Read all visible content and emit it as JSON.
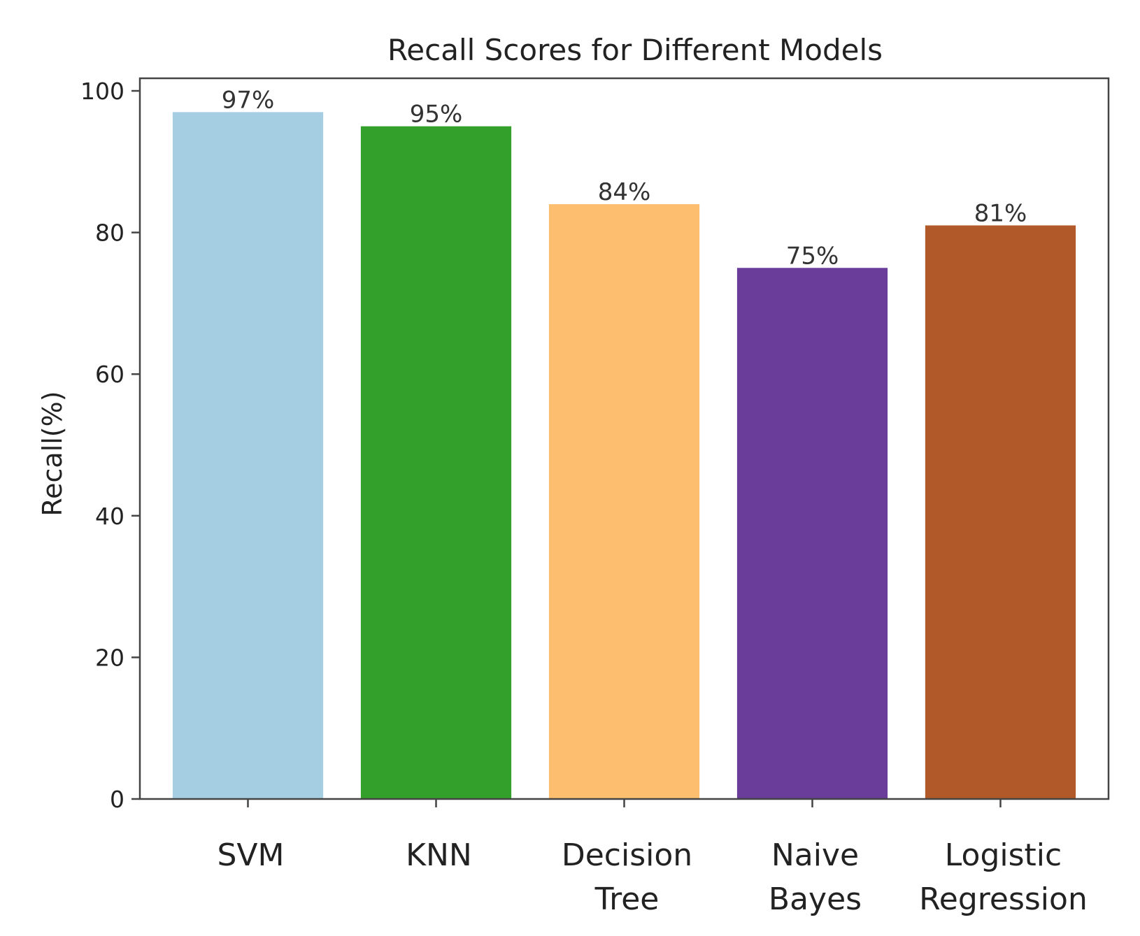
{
  "chart_data": {
    "type": "bar",
    "title": "Recall Scores for Different Models",
    "xlabel": "",
    "ylabel": "Recall(%)",
    "ylim": [
      0,
      100
    ],
    "yticks": [
      0,
      20,
      40,
      60,
      80,
      100
    ],
    "categories": [
      [
        "SVM"
      ],
      [
        "KNN"
      ],
      [
        "Decision",
        "Tree"
      ],
      [
        "Naive",
        "Bayes"
      ],
      [
        "Logistic",
        "Regression"
      ]
    ],
    "values": [
      97,
      95,
      84,
      75,
      81
    ],
    "value_labels": [
      "97%",
      "95%",
      "84%",
      "75%",
      "81%"
    ],
    "colors": [
      "#a6cee3",
      "#33a02c",
      "#fdbf6f",
      "#6a3d9a",
      "#b15928"
    ],
    "grid": false
  }
}
